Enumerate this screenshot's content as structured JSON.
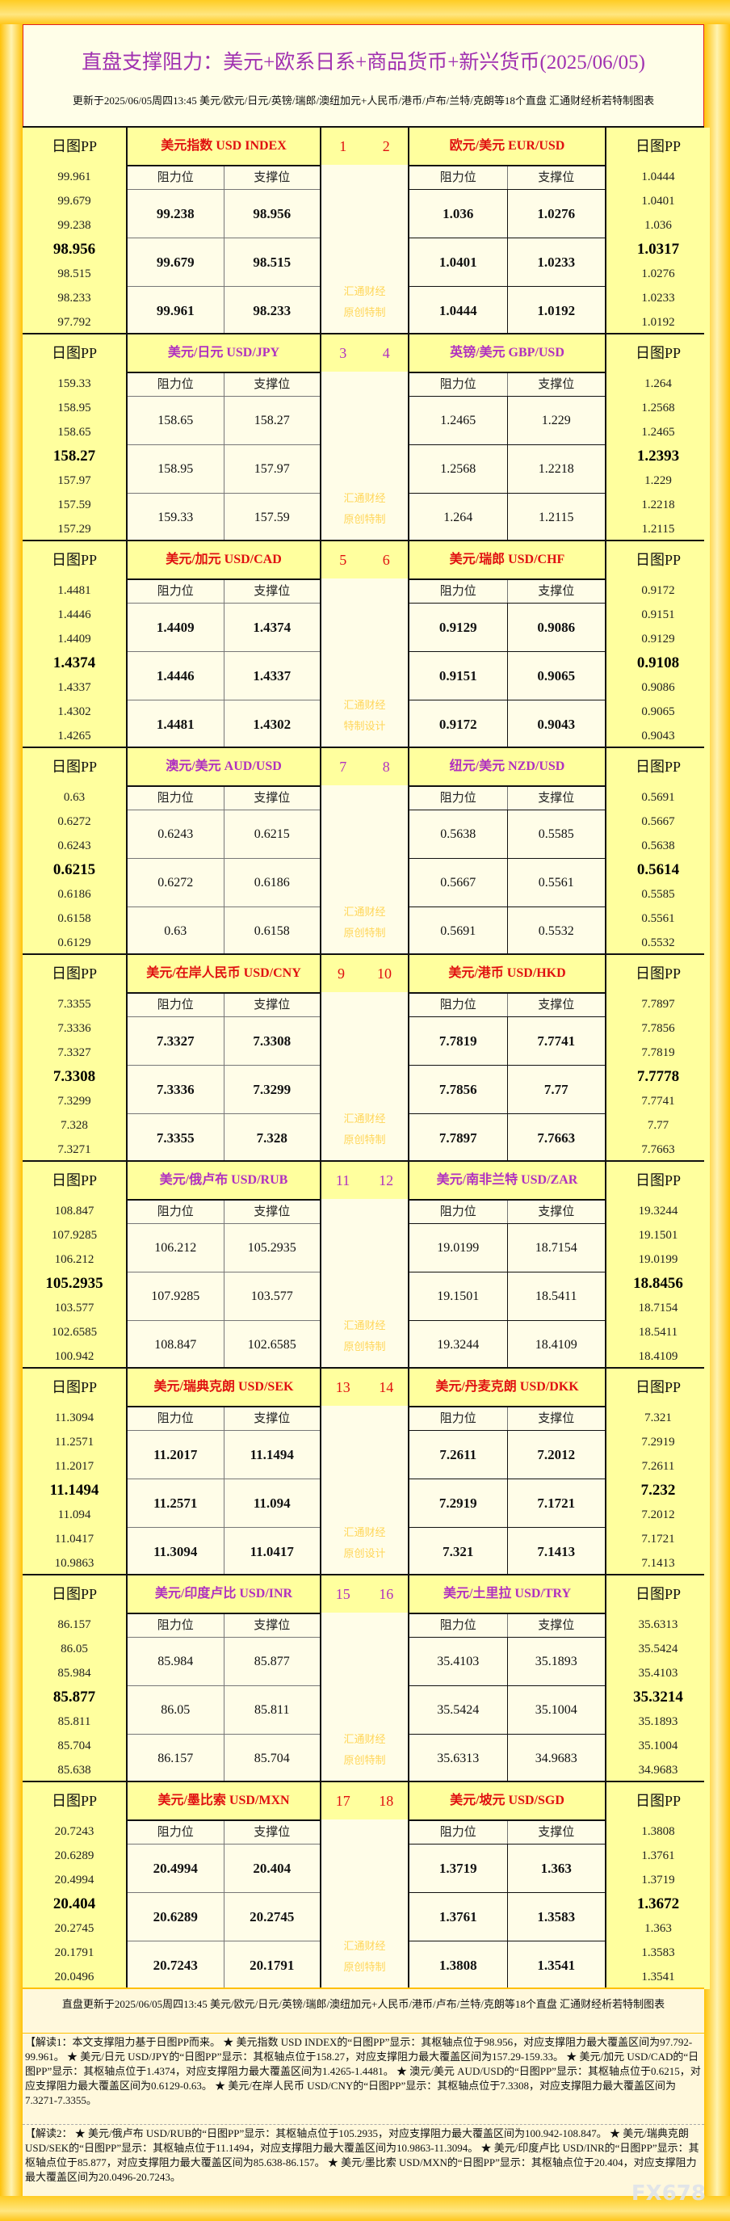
{
  "header": {
    "title": "直盘支撑阻力：美元+欧系日系+商品货币+新兴货币(2025/06/05)",
    "subtitle": "更新于2025/06/05周四13:45 美元/欧元/日元/英镑/瑞郎/澳纽加元+人民币/港币/卢布/兰特/克朗等18个直盘 汇通财经析若特制图表"
  },
  "labels": {
    "pp": "日图PP",
    "resistance": "阻力位",
    "support": "支撑位"
  },
  "colors": {
    "red": "#e01010",
    "purple": "#b030c0"
  },
  "sections": [
    {
      "nums": [
        "1",
        "2"
      ],
      "color": "red",
      "bold": true,
      "wm": [
        "汇通财经",
        "原创特制"
      ],
      "left": {
        "title": "美元指数 USD INDEX",
        "pp": [
          "99.961",
          "99.679",
          "99.238",
          "98.956",
          "98.515",
          "98.233",
          "97.792"
        ],
        "rows": [
          [
            "99.238",
            "98.956"
          ],
          [
            "99.679",
            "98.515"
          ],
          [
            "99.961",
            "98.233"
          ]
        ]
      },
      "right": {
        "title": "欧元/美元 EUR/USD",
        "pp": [
          "1.0444",
          "1.0401",
          "1.036",
          "1.0317",
          "1.0276",
          "1.0233",
          "1.0192"
        ],
        "rows": [
          [
            "1.036",
            "1.0276"
          ],
          [
            "1.0401",
            "1.0233"
          ],
          [
            "1.0444",
            "1.0192"
          ]
        ]
      }
    },
    {
      "nums": [
        "3",
        "4"
      ],
      "color": "purple",
      "bold": false,
      "wm": [
        "汇通财经",
        "原创特制"
      ],
      "left": {
        "title": "美元/日元 USD/JPY",
        "pp": [
          "159.33",
          "158.95",
          "158.65",
          "158.27",
          "157.97",
          "157.59",
          "157.29"
        ],
        "rows": [
          [
            "158.65",
            "158.27"
          ],
          [
            "158.95",
            "157.97"
          ],
          [
            "159.33",
            "157.59"
          ]
        ]
      },
      "right": {
        "title": "英镑/美元 GBP/USD",
        "pp": [
          "1.264",
          "1.2568",
          "1.2465",
          "1.2393",
          "1.229",
          "1.2218",
          "1.2115"
        ],
        "rows": [
          [
            "1.2465",
            "1.229"
          ],
          [
            "1.2568",
            "1.2218"
          ],
          [
            "1.264",
            "1.2115"
          ]
        ]
      }
    },
    {
      "nums": [
        "5",
        "6"
      ],
      "color": "red",
      "bold": true,
      "wm": [
        "汇通财经",
        "特制设计"
      ],
      "left": {
        "title": "美元/加元 USD/CAD",
        "pp": [
          "1.4481",
          "1.4446",
          "1.4409",
          "1.4374",
          "1.4337",
          "1.4302",
          "1.4265"
        ],
        "rows": [
          [
            "1.4409",
            "1.4374"
          ],
          [
            "1.4446",
            "1.4337"
          ],
          [
            "1.4481",
            "1.4302"
          ]
        ]
      },
      "right": {
        "title": "美元/瑞郎 USD/CHF",
        "pp": [
          "0.9172",
          "0.9151",
          "0.9129",
          "0.9108",
          "0.9086",
          "0.9065",
          "0.9043"
        ],
        "rows": [
          [
            "0.9129",
            "0.9086"
          ],
          [
            "0.9151",
            "0.9065"
          ],
          [
            "0.9172",
            "0.9043"
          ]
        ]
      }
    },
    {
      "nums": [
        "7",
        "8"
      ],
      "color": "purple",
      "bold": false,
      "wm": [
        "汇通财经",
        "原创特制"
      ],
      "left": {
        "title": "澳元/美元 AUD/USD",
        "pp": [
          "0.63",
          "0.6272",
          "0.6243",
          "0.6215",
          "0.6186",
          "0.6158",
          "0.6129"
        ],
        "rows": [
          [
            "0.6243",
            "0.6215"
          ],
          [
            "0.6272",
            "0.6186"
          ],
          [
            "0.63",
            "0.6158"
          ]
        ]
      },
      "right": {
        "title": "纽元/美元 NZD/USD",
        "pp": [
          "0.5691",
          "0.5667",
          "0.5638",
          "0.5614",
          "0.5585",
          "0.5561",
          "0.5532"
        ],
        "rows": [
          [
            "0.5638",
            "0.5585"
          ],
          [
            "0.5667",
            "0.5561"
          ],
          [
            "0.5691",
            "0.5532"
          ]
        ]
      }
    },
    {
      "nums": [
        "9",
        "10"
      ],
      "color": "red",
      "bold": true,
      "wm": [
        "汇通财经",
        "原创特制"
      ],
      "left": {
        "title": "美元/在岸人民币 USD/CNY",
        "pp": [
          "7.3355",
          "7.3336",
          "7.3327",
          "7.3308",
          "7.3299",
          "7.328",
          "7.3271"
        ],
        "rows": [
          [
            "7.3327",
            "7.3308"
          ],
          [
            "7.3336",
            "7.3299"
          ],
          [
            "7.3355",
            "7.328"
          ]
        ]
      },
      "right": {
        "title": "美元/港币 USD/HKD",
        "pp": [
          "7.7897",
          "7.7856",
          "7.7819",
          "7.7778",
          "7.7741",
          "7.77",
          "7.7663"
        ],
        "rows": [
          [
            "7.7819",
            "7.7741"
          ],
          [
            "7.7856",
            "7.77"
          ],
          [
            "7.7897",
            "7.7663"
          ]
        ]
      }
    },
    {
      "nums": [
        "11",
        "12"
      ],
      "color": "purple",
      "bold": false,
      "wm": [
        "汇通财经",
        "原创特制"
      ],
      "left": {
        "title": "美元/俄卢布 USD/RUB",
        "pp": [
          "108.847",
          "107.9285",
          "106.212",
          "105.2935",
          "103.577",
          "102.6585",
          "100.942"
        ],
        "rows": [
          [
            "106.212",
            "105.2935"
          ],
          [
            "107.9285",
            "103.577"
          ],
          [
            "108.847",
            "102.6585"
          ]
        ]
      },
      "right": {
        "title": "美元/南非兰特 USD/ZAR",
        "pp": [
          "19.3244",
          "19.1501",
          "19.0199",
          "18.8456",
          "18.7154",
          "18.5411",
          "18.4109"
        ],
        "rows": [
          [
            "19.0199",
            "18.7154"
          ],
          [
            "19.1501",
            "18.5411"
          ],
          [
            "19.3244",
            "18.4109"
          ]
        ]
      }
    },
    {
      "nums": [
        "13",
        "14"
      ],
      "color": "red",
      "bold": true,
      "wm": [
        "汇通财经",
        "原创设计"
      ],
      "left": {
        "title": "美元/瑞典克朗 USD/SEK",
        "pp": [
          "11.3094",
          "11.2571",
          "11.2017",
          "11.1494",
          "11.094",
          "11.0417",
          "10.9863"
        ],
        "rows": [
          [
            "11.2017",
            "11.1494"
          ],
          [
            "11.2571",
            "11.094"
          ],
          [
            "11.3094",
            "11.0417"
          ]
        ]
      },
      "right": {
        "title": "美元/丹麦克朗 USD/DKK",
        "pp": [
          "7.321",
          "7.2919",
          "7.2611",
          "7.232",
          "7.2012",
          "7.1721",
          "7.1413"
        ],
        "rows": [
          [
            "7.2611",
            "7.2012"
          ],
          [
            "7.2919",
            "7.1721"
          ],
          [
            "7.321",
            "7.1413"
          ]
        ]
      }
    },
    {
      "nums": [
        "15",
        "16"
      ],
      "color": "purple",
      "bold": false,
      "wm": [
        "汇通财经",
        "原创特制"
      ],
      "left": {
        "title": "美元/印度卢比 USD/INR",
        "pp": [
          "86.157",
          "86.05",
          "85.984",
          "85.877",
          "85.811",
          "85.704",
          "85.638"
        ],
        "rows": [
          [
            "85.984",
            "85.877"
          ],
          [
            "86.05",
            "85.811"
          ],
          [
            "86.157",
            "85.704"
          ]
        ]
      },
      "right": {
        "title": "美元/土里拉 USD/TRY",
        "pp": [
          "35.6313",
          "35.5424",
          "35.4103",
          "35.3214",
          "35.1893",
          "35.1004",
          "34.9683"
        ],
        "rows": [
          [
            "35.4103",
            "35.1893"
          ],
          [
            "35.5424",
            "35.1004"
          ],
          [
            "35.6313",
            "34.9683"
          ]
        ]
      }
    },
    {
      "nums": [
        "17",
        "18"
      ],
      "color": "red",
      "bold": true,
      "wm": [
        "汇通财经",
        "原创特制"
      ],
      "left": {
        "title": "美元/墨比索 USD/MXN",
        "pp": [
          "20.7243",
          "20.6289",
          "20.4994",
          "20.404",
          "20.2745",
          "20.1791",
          "20.0496"
        ],
        "rows": [
          [
            "20.4994",
            "20.404"
          ],
          [
            "20.6289",
            "20.2745"
          ],
          [
            "20.7243",
            "20.1791"
          ]
        ]
      },
      "right": {
        "title": "美元/坡元 USD/SGD",
        "pp": [
          "1.3808",
          "1.3761",
          "1.3719",
          "1.3672",
          "1.363",
          "1.3583",
          "1.3541"
        ],
        "rows": [
          [
            "1.3719",
            "1.363"
          ],
          [
            "1.3761",
            "1.3583"
          ],
          [
            "1.3808",
            "1.3541"
          ]
        ]
      }
    }
  ],
  "footer": {
    "update": "直盘更新于2025/06/05周四13:45 美元/欧元/日元/英镑/瑞郎/澳纽加元+人民币/港币/卢布/兰特/克朗等18个直盘 汇通财经析若特制图表",
    "note1": "【解读1：本文支撑阻力基于日图PP而来。 ★ 美元指数 USD INDEX的“日图PP”显示：其枢轴点位于98.956，对应支撑阻力最大覆盖区间为97.792-99.961。 ★ 美元/日元 USD/JPY的“日图PP”显示：其枢轴点位于158.27，对应支撑阻力最大覆盖区间为157.29-159.33。 ★ 美元/加元 USD/CAD的“日图PP”显示：其枢轴点位于1.4374，对应支撑阻力最大覆盖区间为1.4265-1.4481。 ★ 澳元/美元 AUD/USD的“日图PP”显示：其枢轴点位于0.6215，对应支撑阻力最大覆盖区间为0.6129-0.63。 ★ 美元/在岸人民币 USD/CNY的“日图PP”显示：其枢轴点位于7.3308，对应支撑阻力最大覆盖区间为7.3271-7.3355。",
    "note2": "【解读2： ★ 美元/俄卢布 USD/RUB的“日图PP”显示：其枢轴点位于105.2935，对应支撑阻力最大覆盖区间为100.942-108.847。 ★ 美元/瑞典克朗 USD/SEK的“日图PP”显示：其枢轴点位于11.1494，对应支撑阻力最大覆盖区间为10.9863-11.3094。 ★ 美元/印度卢比 USD/INR的“日图PP”显示：其枢轴点位于85.877，对应支撑阻力最大覆盖区间为85.638-86.157。 ★ 美元/墨比索 USD/MXN的“日图PP”显示：其枢轴点位于20.404，对应支撑阻力最大覆盖区间为20.0496-20.7243。",
    "logo": "FX678"
  }
}
